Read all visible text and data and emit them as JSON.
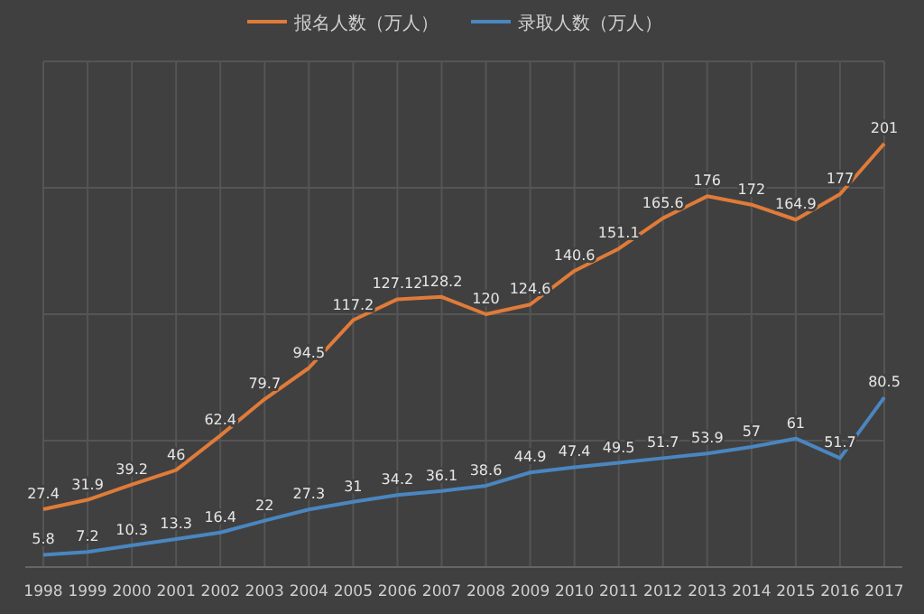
{
  "chart_data": {
    "type": "line",
    "categories": [
      "1998",
      "1999",
      "2000",
      "2001",
      "2002",
      "2003",
      "2004",
      "2005",
      "2006",
      "2007",
      "2008",
      "2009",
      "2010",
      "2011",
      "2012",
      "2013",
      "2014",
      "2015",
      "2016",
      "2017"
    ],
    "series": [
      {
        "name": "报名人数（万人）",
        "color": "#e07b39",
        "values": [
          27.4,
          31.9,
          39.2,
          46,
          62.4,
          79.7,
          94.5,
          117.2,
          127.12,
          128.2,
          120,
          124.6,
          140.6,
          151.1,
          165.6,
          176,
          172,
          164.9,
          177,
          201
        ]
      },
      {
        "name": "录取人数（万人）",
        "color": "#4a86c0",
        "values": [
          5.8,
          7.2,
          10.3,
          13.3,
          16.4,
          22,
          27.3,
          31,
          34.2,
          36.1,
          38.6,
          44.9,
          47.4,
          49.5,
          51.7,
          53.9,
          57,
          61,
          51.7,
          80.5
        ]
      }
    ],
    "ylim": [
      0,
      240
    ],
    "data_labels": true,
    "grid": true,
    "legend": "top"
  }
}
